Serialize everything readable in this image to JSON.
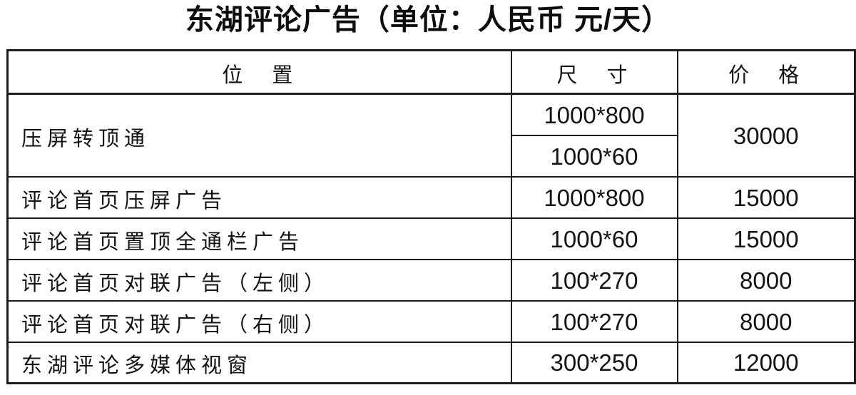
{
  "title": "东湖评论广告（单位：人民币 元/天）",
  "colors": {
    "background": "#ffffff",
    "border": "#1c1c1c",
    "text": "#141414"
  },
  "table": {
    "headers": {
      "position": "位　置",
      "size": "尺　寸",
      "price": "价　格"
    },
    "rows": [
      {
        "position": "压屏转顶通",
        "sizes": [
          "1000*800",
          "1000*60"
        ],
        "price": "30000"
      },
      {
        "position": "评论首页压屏广告",
        "size": "1000*800",
        "price": "15000"
      },
      {
        "position": "评论首页置顶全通栏广告",
        "size": "1000*60",
        "price": "15000"
      },
      {
        "position": "评论首页对联广告（左侧）",
        "size": "100*270",
        "price": "8000"
      },
      {
        "position": "评论首页对联广告（右侧）",
        "size": "100*270",
        "price": "8000"
      },
      {
        "position": "东湖评论多媒体视窗",
        "size": "300*250",
        "price": "12000"
      }
    ]
  }
}
